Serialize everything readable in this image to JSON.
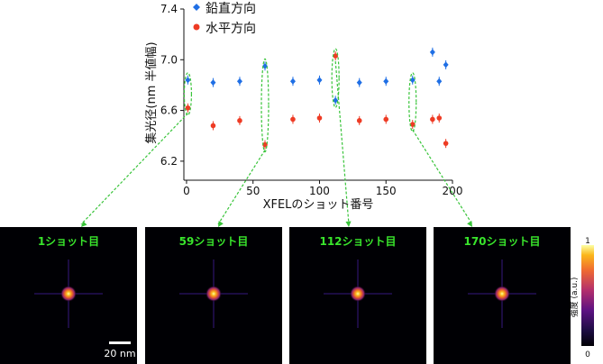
{
  "chart_data": [
    {
      "type": "scatter",
      "title": "",
      "xlabel": "XFELのショット番号",
      "ylabel": "集光径(nm 半値幅)",
      "xlim": [
        -2,
        200
      ],
      "ylim": [
        6.05,
        7.4
      ],
      "xticks": [
        "0",
        "50",
        "100",
        "150",
        "200"
      ],
      "yticks": [
        "6.2",
        "6.6",
        "7.0",
        "7.4"
      ],
      "legend_position": "top-right",
      "grid": false,
      "error_bars": true,
      "colors": {
        "vertical": "#1f6fe5",
        "horizontal": "#ee3b24",
        "annotation": "#39c43a"
      },
      "series": [
        {
          "name": "鉛直方向",
          "marker": "diamond",
          "x": [
            1,
            20,
            40,
            59,
            80,
            100,
            112,
            130,
            150,
            170,
            185,
            190,
            195
          ],
          "y": [
            6.84,
            6.82,
            6.83,
            6.95,
            6.83,
            6.84,
            6.68,
            6.82,
            6.83,
            6.84,
            7.06,
            6.83,
            6.96
          ]
        },
        {
          "name": "水平方向",
          "marker": "circle",
          "x": [
            1,
            20,
            40,
            59,
            80,
            100,
            112,
            130,
            150,
            170,
            185,
            190,
            195
          ],
          "y": [
            6.62,
            6.48,
            6.52,
            6.33,
            6.53,
            6.54,
            7.03,
            6.52,
            6.53,
            6.49,
            6.53,
            6.54,
            6.34
          ]
        }
      ],
      "highlighted_shots": [
        1,
        59,
        112,
        170
      ]
    },
    {
      "type": "heatmap",
      "panels": [
        "1ショット目",
        "59ショット目",
        "112ショット目",
        "170ショット目"
      ],
      "scalebar_label": "20 nm",
      "colorbar_label": "強度 (a.u.)",
      "colorbar_ticks": [
        "0",
        "1"
      ]
    }
  ]
}
